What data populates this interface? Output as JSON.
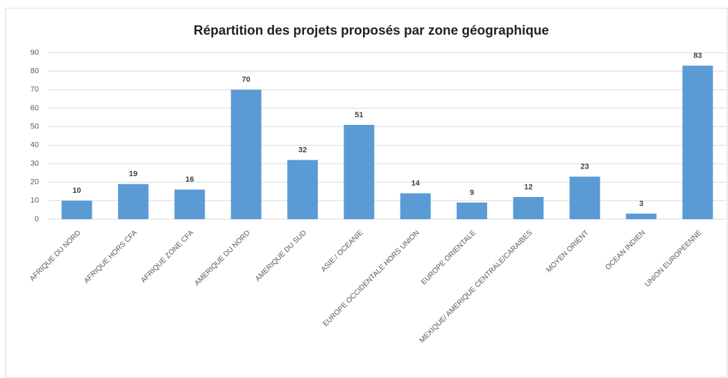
{
  "chart_data": {
    "type": "bar",
    "title": "Répartition des projets proposés par zone géographique",
    "categories": [
      "AFRIQUE DU NORD",
      "AFRIQUE HORS CFA",
      "AFRIQUE ZONE CFA",
      "AMERIQUE DU NORD",
      "AMERIQUE DU SUD",
      "ASIE / OCEANIE",
      "EUROPE OCCIDENTALE HORS UNION",
      "EUROPE ORIENTALE",
      "MEXIQUE/ AMERIQUE CENTRALE/CARAIBES",
      "MOYEN ORIENT",
      "OCEAN INDIEN",
      "UNION EUROPEENNE"
    ],
    "values": [
      10,
      19,
      16,
      70,
      32,
      51,
      14,
      9,
      12,
      23,
      3,
      83
    ],
    "color": "#5b9bd5",
    "ylim": [
      0,
      90
    ],
    "yticks": [
      0,
      10,
      20,
      30,
      40,
      50,
      60,
      70,
      80,
      90
    ],
    "grid": true
  }
}
